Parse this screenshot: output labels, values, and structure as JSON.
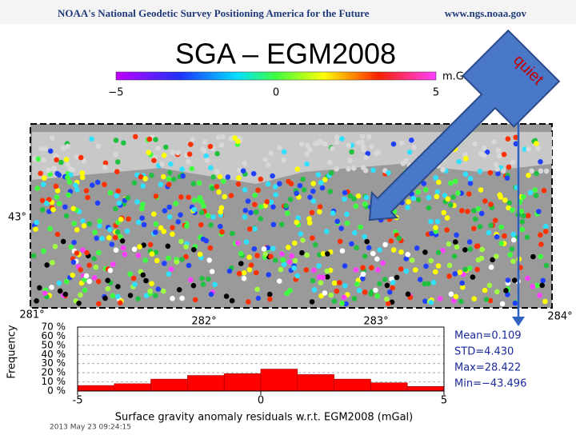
{
  "header": {
    "left": "NOAA's National Geodetic Survey Positioning America for the Future",
    "right": "www.ngs.noaa.gov"
  },
  "title": "SGA – EGM2008",
  "callout": "quiet",
  "colorbar": {
    "unit": "m.Gal",
    "ticks": [
      "−5",
      "0",
      "5"
    ]
  },
  "map": {
    "lon_labels": [
      "281°",
      "282°",
      "283°",
      "284°"
    ],
    "lat_labels": [
      "43°"
    ]
  },
  "footer": "2013 May 23 09:24:15",
  "chart_data": {
    "type": "histogram",
    "x_label": "Surface gravity anomaly residuals w.r.t. EGM2008 (mGal)",
    "y_label": "Frequency",
    "bins": [
      -5,
      -4,
      -3,
      -2,
      -1,
      0,
      1,
      2,
      3,
      4,
      5
    ],
    "values": [
      6,
      8,
      13,
      17,
      19,
      24,
      18,
      13,
      9,
      5
    ],
    "color": "#ff0000",
    "xlim": [
      -5,
      5
    ],
    "xticks": [
      -5,
      0,
      5
    ],
    "ylim": [
      0,
      70
    ],
    "yticks": [
      {
        "value": 0,
        "label": "0 %"
      },
      {
        "value": 10,
        "label": "10 %"
      },
      {
        "value": 20,
        "label": "20 %"
      },
      {
        "value": 30,
        "label": "30 %"
      },
      {
        "value": 40,
        "label": "40 %"
      },
      {
        "value": 50,
        "label": "50 %"
      },
      {
        "value": 60,
        "label": "60 %"
      },
      {
        "value": 70,
        "label": "70 %"
      }
    ],
    "grid": true,
    "annotations": [
      "Mean=0.109",
      "STD=4.430",
      "Max=28.422",
      "Min=−43.496"
    ]
  }
}
